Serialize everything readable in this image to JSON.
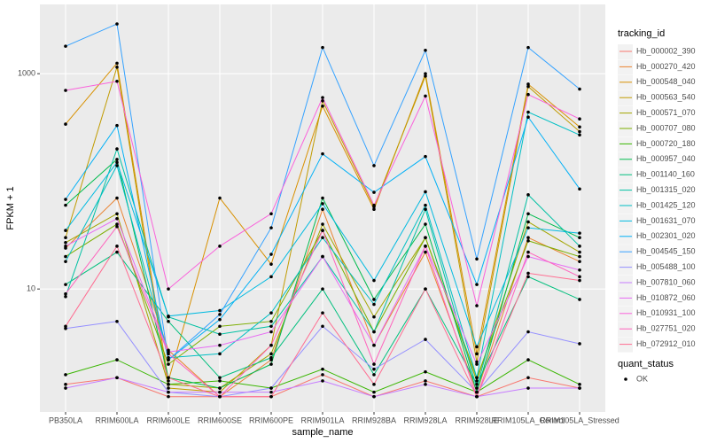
{
  "chart_data": {
    "type": "line",
    "x_label": "sample_name",
    "y_label": "FPKM + 1",
    "categories": [
      "PB350LA",
      "RRIM600LA",
      "RRIM600LE",
      "RRIM600SE",
      "RRIM600PE",
      "RRIM901LA",
      "RRIM928BA",
      "RRIM928LA",
      "RRIM928LE",
      "RRIM105LA_Control",
      "RRIM105LA_Stressed"
    ],
    "ylim": [
      0.72,
      4400
    ],
    "yticks": [
      10,
      1000
    ],
    "log_y": true,
    "grid": true,
    "legend_title": "tracking_id",
    "legend_position": "right",
    "point_legend_title": "quant_status",
    "point_legend_label": "OK",
    "series": [
      {
        "name": "Hb_000002_390",
        "color": "#F8766D",
        "values": [
          1.3,
          1.5,
          1.0,
          1.0,
          1.0,
          1.6,
          1.0,
          1.4,
          1.0,
          1.5,
          1.2
        ]
      },
      {
        "name": "Hb_000270_420",
        "color": "#EA8331",
        "values": [
          24,
          70,
          2.7,
          1.0,
          2.2,
          55,
          3.0,
          22,
          1.1,
          30,
          18
        ]
      },
      {
        "name": "Hb_000548_040",
        "color": "#D89000",
        "values": [
          340,
          1250,
          1.4,
          70,
          17,
          500,
          55,
          1000,
          2.5,
          800,
          320
        ]
      },
      {
        "name": "Hb_000563_540",
        "color": "#C09B00",
        "values": [
          30,
          1150,
          1.2,
          1.1,
          3.0,
          560,
          58,
          950,
          2.1,
          760,
          290
        ]
      },
      {
        "name": "Hb_000571_070",
        "color": "#A3A500",
        "values": [
          27,
          50,
          1.3,
          1.2,
          2.5,
          40,
          5.5,
          30,
          1.4,
          42,
          22
        ]
      },
      {
        "name": "Hb_000707_080",
        "color": "#7CAE00",
        "values": [
          20,
          40,
          2.0,
          4.5,
          5.0,
          35,
          4.0,
          30,
          1.5,
          28,
          20
        ]
      },
      {
        "name": "Hb_000720_180",
        "color": "#39B600",
        "values": [
          1.6,
          2.2,
          1.3,
          1.4,
          1.2,
          1.8,
          1.1,
          1.7,
          1.1,
          2.2,
          1.3
        ]
      },
      {
        "name": "Hb_000957_040",
        "color": "#00BB4E",
        "values": [
          60,
          160,
          1.5,
          1.2,
          2.0,
          70,
          8.0,
          40,
          1.1,
          50,
          30
        ]
      },
      {
        "name": "Hb_001140_160",
        "color": "#00BF7D",
        "values": [
          11,
          22,
          5.0,
          1.5,
          2.3,
          10,
          1.6,
          10,
          1.3,
          13,
          8.0
        ]
      },
      {
        "name": "Hb_001315_020",
        "color": "#00C1A3",
        "values": [
          8.5,
          200,
          5.5,
          3.8,
          4.5,
          20,
          4.0,
          55,
          1.2,
          75,
          25
        ]
      },
      {
        "name": "Hb_001425_120",
        "color": "#00BFC4",
        "values": [
          18,
          140,
          2.3,
          2.5,
          6.0,
          30,
          7.2,
          60,
          1.5,
          440,
          270
        ]
      },
      {
        "name": "Hb_001631_070",
        "color": "#00BAE0",
        "values": [
          35,
          150,
          5.6,
          6.3,
          13,
          62,
          12,
          80,
          2.9,
          37,
          33
        ]
      },
      {
        "name": "Hb_002301_020",
        "color": "#00B0F6",
        "values": [
          68,
          330,
          2.2,
          5.2,
          21,
          180,
          79,
          170,
          11,
          395,
          85
        ]
      },
      {
        "name": "Hb_004545_150",
        "color": "#35A2FF",
        "values": [
          1800,
          2900,
          2.2,
          5.8,
          37,
          1750,
          140,
          1650,
          19,
          1750,
          720
        ]
      },
      {
        "name": "Hb_005488_100",
        "color": "#9590FF",
        "values": [
          4.3,
          5.0,
          1.1,
          1.0,
          1.2,
          4.5,
          1.8,
          3.4,
          1.1,
          4.0,
          3.1
        ]
      },
      {
        "name": "Hb_007810_060",
        "color": "#C77CFF",
        "values": [
          1.2,
          1.5,
          1.1,
          1.1,
          1.1,
          1.4,
          1.0,
          1.3,
          1.0,
          1.2,
          1.2
        ]
      },
      {
        "name": "Hb_010872_060",
        "color": "#E76BF3",
        "values": [
          25,
          45,
          2.6,
          3.0,
          4.0,
          20,
          3.0,
          25,
          2.0,
          20,
          15
        ]
      },
      {
        "name": "Hb_010931_100",
        "color": "#FA62DB",
        "values": [
          700,
          850,
          10,
          25,
          50,
          600,
          60,
          620,
          7.0,
          640,
          380
        ]
      },
      {
        "name": "Hb_027751_020",
        "color": "#FF62BC",
        "values": [
          9,
          38,
          2.5,
          1.0,
          3.0,
          35,
          2.0,
          25,
          1.0,
          22,
          13
        ]
      },
      {
        "name": "Hb_072912_010",
        "color": "#FF6C91",
        "values": [
          4.5,
          25,
          1.5,
          1.0,
          1.0,
          6.0,
          1.3,
          10,
          1.0,
          14,
          12
        ]
      }
    ]
  }
}
